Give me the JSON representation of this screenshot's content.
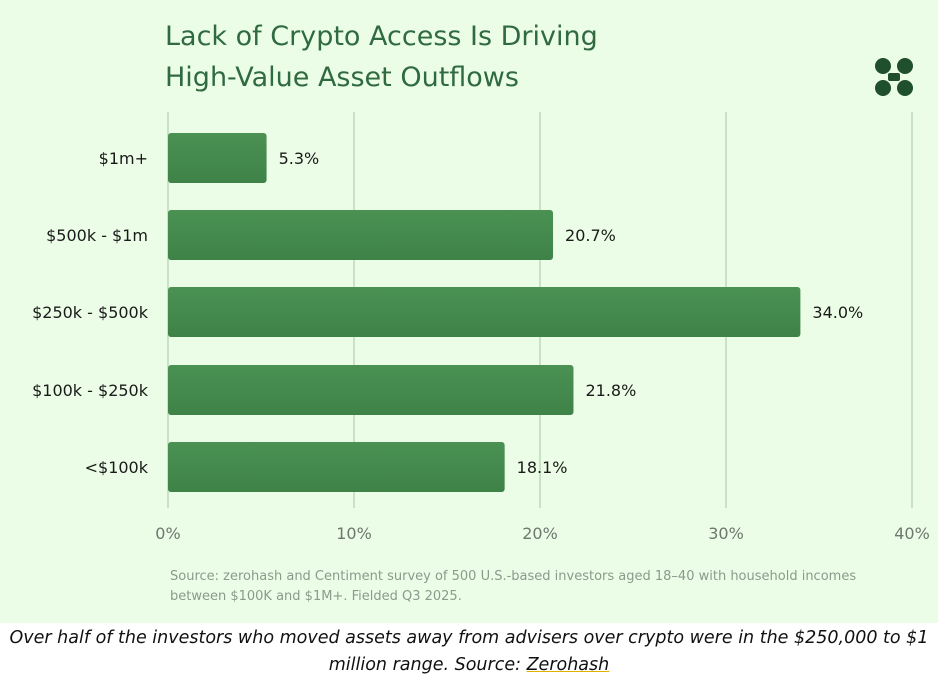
{
  "header": {
    "title_line1": "Lack of Crypto Access Is Driving",
    "title_line2": "High-Value Asset Outflows",
    "logo_icon": "zerohash-logo-icon"
  },
  "chart_data": {
    "type": "bar",
    "orientation": "horizontal",
    "title": "Lack of Crypto Access Is Driving High-Value Asset Outflows",
    "categories": [
      "$1m+",
      "$500k - $1m",
      "$250k - $500k",
      "$100k - $250k",
      "<$100k"
    ],
    "values": [
      5.3,
      20.7,
      34.0,
      21.8,
      18.1
    ],
    "value_labels": [
      "5.3%",
      "20.7%",
      "34.0%",
      "21.8%",
      "18.1%"
    ],
    "xticks": [
      0,
      10,
      20,
      30,
      40
    ],
    "xtick_labels": [
      "0%",
      "10%",
      "20%",
      "30%",
      "40%"
    ],
    "xlim": [
      0,
      40
    ],
    "grid": true,
    "xlabel": "",
    "ylabel": "",
    "colors": {
      "bar": "#3f8248",
      "bar_top": "#4a9153",
      "grid": "#c9e2c6",
      "text": "#1a1a1a",
      "axis_text": "#6e776f",
      "title": "#2f6a41"
    }
  },
  "source_note": "Source: zerohash and Centiment survey of 500 U.S.-based investors aged 18–40 with household incomes between $100K and $1M+. Fielded Q3 2025.",
  "caption": {
    "text": "Over half of the investors who moved assets away from advisers over crypto were in the $250,000 to $1 million range. Source: ",
    "link_text": "Zerohash"
  }
}
